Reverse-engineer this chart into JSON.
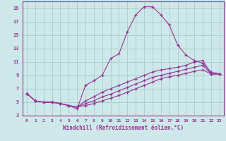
{
  "title": "",
  "xlabel": "Windchill (Refroidissement éolien,°C)",
  "bg_color": "#cce8e8",
  "grid_color": "#aacccc",
  "line_color": "#993399",
  "xlim": [
    -0.5,
    23.5
  ],
  "ylim": [
    3,
    20
  ],
  "xticks": [
    0,
    1,
    2,
    3,
    4,
    5,
    6,
    7,
    8,
    9,
    10,
    11,
    12,
    13,
    14,
    15,
    16,
    17,
    18,
    19,
    20,
    21,
    22,
    23
  ],
  "yticks": [
    3,
    5,
    7,
    9,
    11,
    13,
    15,
    17,
    19
  ],
  "line1_x": [
    0,
    1,
    2,
    3,
    4,
    5,
    6,
    7,
    8,
    9,
    10,
    11,
    12,
    13,
    14,
    15,
    16,
    17,
    18,
    19,
    20,
    21,
    22,
    23
  ],
  "line1_y": [
    6.3,
    5.2,
    5.0,
    5.0,
    4.8,
    4.5,
    4.0,
    7.5,
    8.2,
    9.0,
    11.5,
    12.2,
    15.5,
    18.0,
    19.2,
    19.2,
    18.0,
    16.5,
    13.5,
    12.0,
    11.2,
    10.8,
    9.5,
    9.2
  ],
  "line2_x": [
    0,
    1,
    2,
    3,
    4,
    5,
    6,
    7,
    8,
    9,
    10,
    11,
    12,
    13,
    14,
    15,
    16,
    17,
    18,
    19,
    20,
    21,
    22,
    23
  ],
  "line2_y": [
    6.3,
    5.2,
    5.0,
    5.0,
    4.8,
    4.5,
    4.3,
    5.2,
    5.8,
    6.5,
    7.0,
    7.5,
    8.0,
    8.5,
    9.0,
    9.5,
    9.8,
    10.0,
    10.2,
    10.5,
    11.0,
    11.2,
    9.2,
    9.2
  ],
  "line3_x": [
    0,
    1,
    2,
    3,
    4,
    5,
    6,
    7,
    8,
    9,
    10,
    11,
    12,
    13,
    14,
    15,
    16,
    17,
    18,
    19,
    20,
    21,
    22,
    23
  ],
  "line3_y": [
    6.3,
    5.2,
    5.0,
    5.0,
    4.8,
    4.5,
    4.3,
    4.8,
    5.2,
    5.8,
    6.2,
    6.7,
    7.2,
    7.7,
    8.2,
    8.7,
    9.0,
    9.3,
    9.6,
    9.9,
    10.2,
    10.5,
    9.2,
    9.2
  ],
  "line4_x": [
    0,
    1,
    2,
    3,
    4,
    5,
    6,
    7,
    8,
    9,
    10,
    11,
    12,
    13,
    14,
    15,
    16,
    17,
    18,
    19,
    20,
    21,
    22,
    23
  ],
  "line4_y": [
    6.3,
    5.2,
    5.0,
    5.0,
    4.8,
    4.5,
    4.3,
    4.5,
    4.8,
    5.2,
    5.6,
    6.0,
    6.5,
    7.0,
    7.5,
    8.0,
    8.5,
    8.8,
    9.0,
    9.3,
    9.6,
    9.8,
    9.2,
    9.2
  ]
}
